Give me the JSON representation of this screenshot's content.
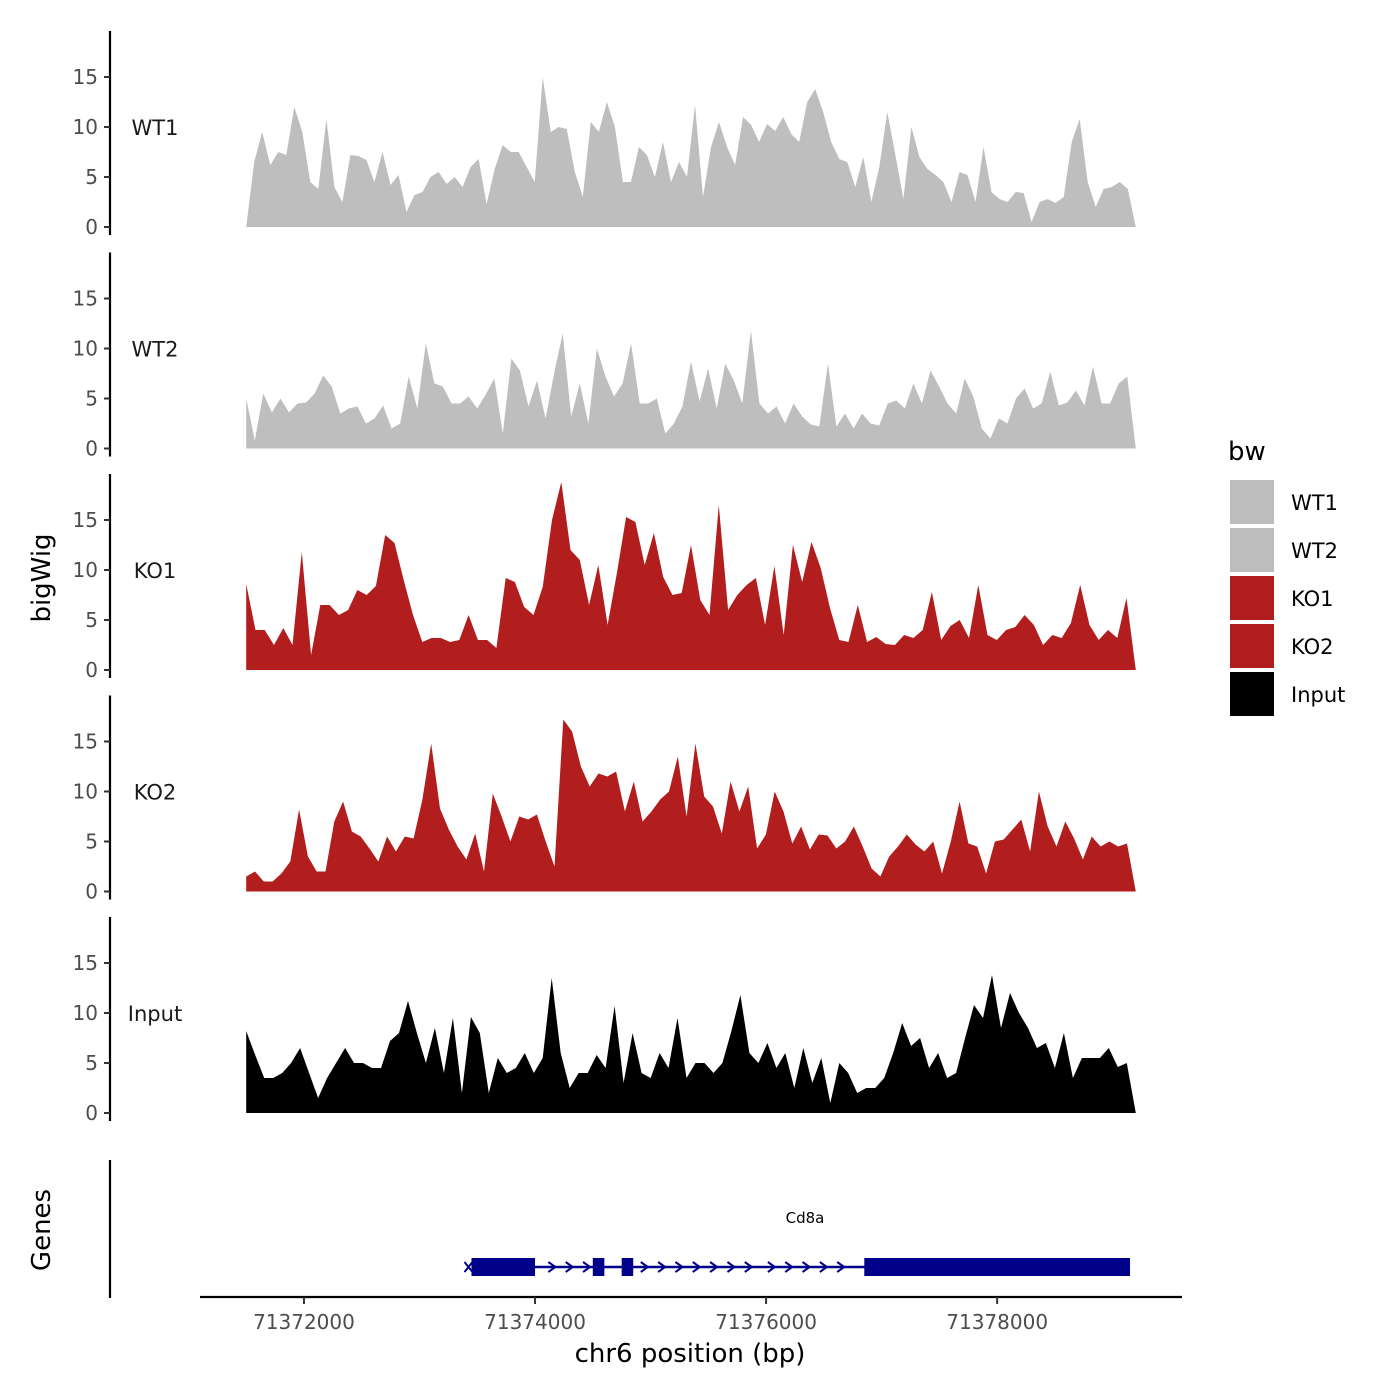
{
  "chart_data": {
    "type": "area",
    "ylabel": "bigWig",
    "xlabel": "chr6 position (bp)",
    "genes_label": "Genes",
    "xlim": [
      71371100,
      71379600
    ],
    "data_range": [
      71371500,
      71379200
    ],
    "xticks": [
      71372000,
      71374000,
      71376000,
      71378000
    ],
    "xtick_labels": [
      "71372000",
      "71374000",
      "71376000",
      "71378000"
    ],
    "ylim": [
      0,
      20
    ],
    "yticks": [
      0,
      5,
      10,
      15
    ],
    "ytick_labels": [
      "0",
      "5",
      "10",
      "15"
    ],
    "legend": {
      "title": "bw",
      "entries": [
        {
          "label": "WT1",
          "color": "#bebebe"
        },
        {
          "label": "WT2",
          "color": "#bebebe"
        },
        {
          "label": "KO1",
          "color": "#b21e1e"
        },
        {
          "label": "KO2",
          "color": "#b21e1e"
        },
        {
          "label": "Input",
          "color": "#000000"
        }
      ]
    },
    "series": [
      {
        "name": "WT1",
        "color": "#bebebe",
        "values": [
          0,
          6.5,
          9.5,
          6.2,
          7.5,
          7.2,
          12,
          9.5,
          4.5,
          3.8,
          10.8,
          4,
          2.5,
          7.2,
          7.1,
          6.7,
          4.5,
          7.5,
          4.2,
          5.2,
          1.5,
          3.2,
          3.5,
          5,
          5.5,
          4.3,
          5,
          4,
          6,
          6.8,
          2.3,
          5.8,
          8.2,
          7.5,
          7.5,
          6,
          4.5,
          15,
          9.5,
          10,
          9.8,
          5.5,
          3,
          10.5,
          9.5,
          12.5,
          10,
          4.5,
          4.5,
          8,
          7.2,
          5,
          8.5,
          4.5,
          6.5,
          5,
          12.2,
          3,
          8,
          10.5,
          8,
          6.2,
          11,
          10.2,
          8.5,
          10.3,
          9.6,
          11,
          9.3,
          8.5,
          12.5,
          13.8,
          11.5,
          8.5,
          6.8,
          6.5,
          4,
          7,
          2.5,
          6,
          11.5,
          7.2,
          2.8,
          10,
          7,
          5.8,
          5.2,
          4.5,
          2.5,
          5.5,
          5.2,
          2.5,
          8,
          3.5,
          2.8,
          2.5,
          3.5,
          3.4,
          0.5,
          2.5,
          2.8,
          2.4,
          3,
          8.5,
          10.8,
          4.5,
          2,
          3.8,
          4,
          4.5,
          3.8,
          0
        ]
      },
      {
        "name": "WT2",
        "color": "#bebebe",
        "values": [
          5,
          0.8,
          5.5,
          3.6,
          5,
          3.6,
          4.5,
          4.6,
          5.5,
          7.3,
          6.2,
          3.5,
          4,
          4.2,
          2.5,
          3,
          4.3,
          2,
          2.5,
          7.2,
          4,
          10.5,
          6.5,
          6.2,
          4.5,
          4.5,
          5.2,
          4,
          5.4,
          7,
          1.5,
          9,
          7.8,
          4.2,
          6.8,
          3,
          7.5,
          11.5,
          3.2,
          6.5,
          2.5,
          10,
          7.2,
          5.2,
          6.5,
          10.5,
          4.5,
          4.5,
          5,
          1.5,
          2.5,
          4.2,
          8.7,
          4.7,
          8,
          4,
          8.5,
          6.8,
          4.5,
          11.8,
          4.5,
          3.5,
          4.2,
          2.5,
          4.5,
          3.2,
          2.4,
          2.2,
          8.5,
          2.2,
          3.5,
          2,
          3.5,
          2.5,
          2.3,
          4.5,
          4.8,
          4,
          6.5,
          4.5,
          7.8,
          6.2,
          4.5,
          3.5,
          7,
          5.2,
          2,
          1,
          3,
          2.5,
          5,
          6,
          4,
          4.5,
          7.7,
          4.3,
          4.6,
          5.8,
          4.3,
          8.2,
          4.5,
          4.5,
          6.5,
          7.2,
          0
        ]
      },
      {
        "name": "KO1",
        "color": "#b21e1e",
        "values": [
          8.6,
          4,
          4,
          2.5,
          4.2,
          2.5,
          11.8,
          1.5,
          6.5,
          6.5,
          5.5,
          6,
          8,
          7.5,
          8.4,
          13.5,
          12.7,
          9,
          5.5,
          2.8,
          3.2,
          3.2,
          2.8,
          3,
          5.5,
          3,
          3,
          2.2,
          9.2,
          8.8,
          6.3,
          5.5,
          8.3,
          15,
          18.8,
          12,
          11,
          6.5,
          10.5,
          4.5,
          9.7,
          15.3,
          14.8,
          10.5,
          13.7,
          9.3,
          7.5,
          7.7,
          12.5,
          7,
          5.5,
          16.5,
          6,
          7.5,
          8.5,
          9.2,
          4.5,
          10.4,
          3.5,
          12.5,
          8.8,
          12.8,
          10.2,
          6.2,
          3,
          2.8,
          6.5,
          2.8,
          3.3,
          2.6,
          2.5,
          3.5,
          3.2,
          4,
          7.8,
          3,
          4.4,
          5,
          3.2,
          8.5,
          3.5,
          3,
          4,
          4.3,
          5.5,
          4.5,
          2.5,
          3.5,
          3.2,
          4.7,
          8.5,
          4.5,
          3,
          4,
          3.2,
          7.2,
          0
        ]
      },
      {
        "name": "KO2",
        "color": "#b21e1e",
        "values": [
          1.5,
          2,
          1,
          1,
          1.8,
          3,
          8.2,
          3.5,
          2,
          2,
          7,
          9,
          6,
          5.5,
          4.3,
          3,
          5.5,
          4,
          5.5,
          5.3,
          9.2,
          14.8,
          8.3,
          6.2,
          4.5,
          3.2,
          5.8,
          2,
          9.8,
          7.5,
          5,
          7.5,
          7.2,
          7.7,
          5,
          2.5,
          17.2,
          16,
          12.5,
          10.5,
          11.8,
          11.5,
          12,
          8,
          11,
          7,
          8,
          9.2,
          10,
          13.5,
          7.5,
          14.8,
          9.5,
          8.5,
          5.8,
          11,
          8,
          10.5,
          4.3,
          5.7,
          10,
          8,
          4.8,
          6.5,
          4.2,
          5.7,
          5.6,
          4.3,
          5,
          6.5,
          4.5,
          2.3,
          1.5,
          3.5,
          4.5,
          5.7,
          4.7,
          4,
          5,
          1.8,
          5,
          9,
          4.8,
          4.5,
          1.8,
          5,
          5.2,
          6.2,
          7.2,
          4,
          10,
          6.5,
          4.5,
          7,
          5.3,
          3.2,
          5.5,
          4.5,
          5,
          4.5,
          4.8,
          0
        ]
      },
      {
        "name": "Input",
        "color": "#000000",
        "values": [
          8.2,
          5.8,
          3.5,
          3.5,
          4,
          5,
          6.5,
          4,
          1.5,
          3.5,
          5,
          6.5,
          5,
          5,
          4.5,
          4.5,
          7.2,
          8,
          11.2,
          8,
          5,
          8.5,
          4,
          9.5,
          2,
          9.6,
          8,
          2,
          5.5,
          4,
          4.5,
          6,
          4,
          5.5,
          13.5,
          6,
          2.5,
          4,
          4,
          5.8,
          4.5,
          10.7,
          3,
          8,
          4,
          3.5,
          6,
          4.5,
          9.5,
          3.5,
          5,
          5,
          4,
          5,
          8.2,
          11.8,
          6,
          5,
          7,
          4.5,
          6,
          2.5,
          6.5,
          3,
          5.5,
          1,
          5,
          4,
          2,
          2.5,
          2.5,
          3.5,
          6,
          9,
          6.7,
          7.5,
          4.5,
          6,
          3.5,
          4,
          7.5,
          10.8,
          9.5,
          13.8,
          8.5,
          12,
          10,
          8.5,
          6.5,
          7,
          4.5,
          8,
          3.5,
          5.5,
          5.5,
          5.5,
          6.5,
          4.6,
          5,
          0
        ]
      }
    ],
    "gene": {
      "name": "Cd8a",
      "color": "#00008b",
      "start": 71373450,
      "end": 71379150,
      "exons": [
        [
          71373450,
          71374000
        ],
        [
          71374500,
          71374600
        ],
        [
          71374750,
          71374850
        ],
        [
          71376850,
          71379150
        ]
      ],
      "strand_markers": [
        71374150,
        71374300,
        71374450,
        71374950,
        71375100,
        71375250,
        71375400,
        71375550,
        71375700,
        71375850,
        71376050,
        71376200,
        71376350,
        71376500,
        71376650
      ]
    }
  }
}
